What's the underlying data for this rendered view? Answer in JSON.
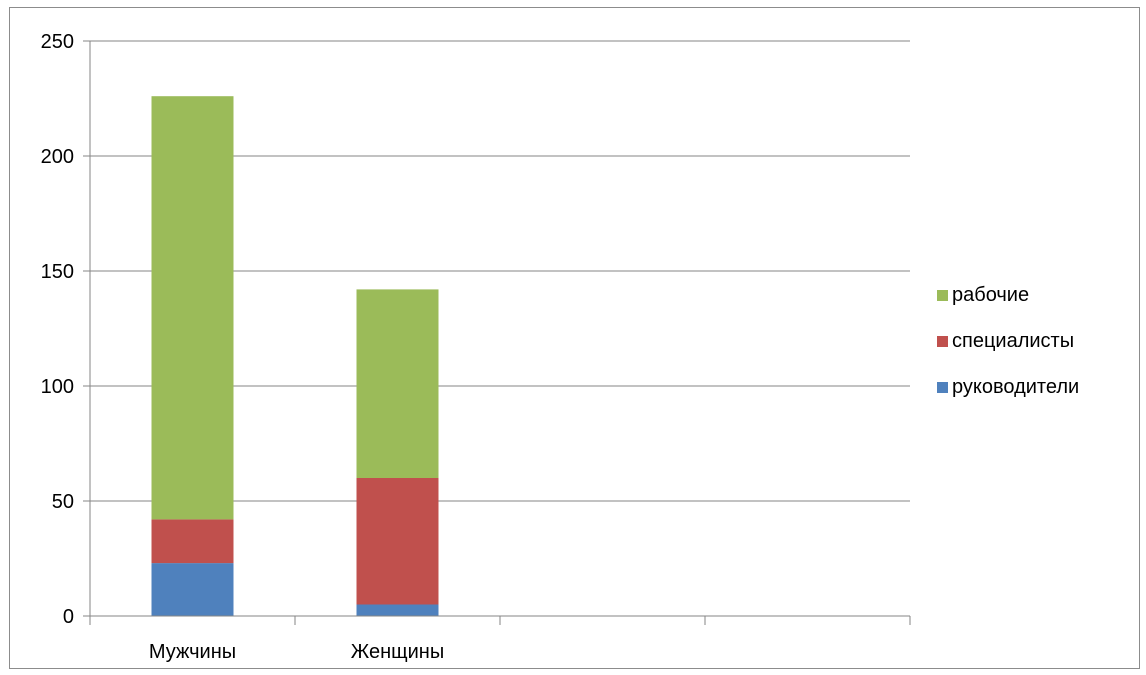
{
  "chart_data": {
    "type": "bar",
    "stacked": true,
    "categories": [
      "Мужчины",
      "Женщины",
      "",
      ""
    ],
    "series": [
      {
        "name": "руководители",
        "values": [
          23,
          5,
          0,
          0
        ],
        "color": "#4f81bd"
      },
      {
        "name": "специалисты",
        "values": [
          19,
          55,
          0,
          0
        ],
        "color": "#c0504d"
      },
      {
        "name": "рабочие",
        "values": [
          184,
          82,
          0,
          0
        ],
        "color": "#9bbb59"
      }
    ],
    "ylim": [
      0,
      250
    ],
    "yticks": [
      0,
      50,
      100,
      150,
      200,
      250
    ],
    "grid": true,
    "legend_position": "right",
    "legend_order": [
      "рабочие",
      "специалисты",
      "руководители"
    ]
  }
}
